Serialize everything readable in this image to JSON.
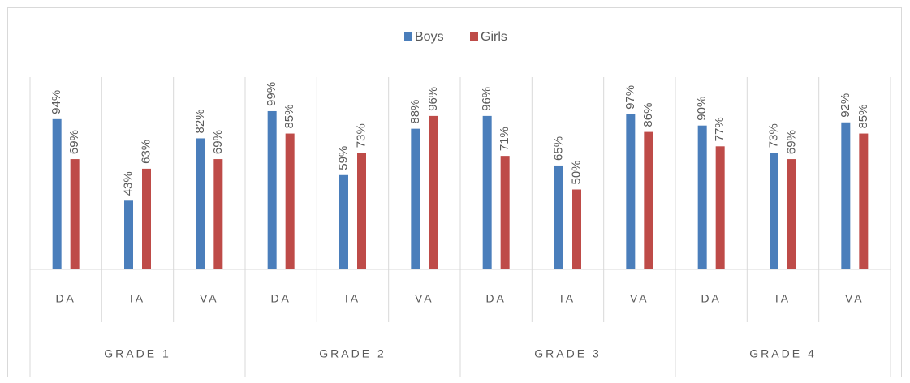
{
  "chart_data": {
    "type": "grouped_bar",
    "groups": [
      {
        "label": "GRADE 1",
        "categories": [
          "DA",
          "IA",
          "VA"
        ]
      },
      {
        "label": "GRADE 2",
        "categories": [
          "DA",
          "IA",
          "VA"
        ]
      },
      {
        "label": "GRADE 3",
        "categories": [
          "DA",
          "IA",
          "VA"
        ]
      },
      {
        "label": "GRADE 4",
        "categories": [
          "DA",
          "IA",
          "VA"
        ]
      }
    ],
    "series": [
      {
        "name": "Boys",
        "color": "#4a7ebb",
        "values": [
          94,
          43,
          82,
          99,
          59,
          88,
          96,
          65,
          97,
          90,
          73,
          92
        ],
        "value_labels": [
          "94%",
          "43%",
          "82%",
          "99%",
          "59%",
          "88%",
          "96%",
          "65%",
          "97%",
          "90%",
          "73%",
          "92%"
        ]
      },
      {
        "name": "Girls",
        "color": "#be4b48",
        "values": [
          69,
          63,
          69,
          85,
          73,
          96,
          71,
          50,
          86,
          77,
          69,
          85
        ],
        "value_labels": [
          "69%",
          "63%",
          "69%",
          "85%",
          "73%",
          "96%",
          "71%",
          "50%",
          "86%",
          "77%",
          "69%",
          "85%"
        ]
      }
    ],
    "ylim": [
      0,
      100
    ],
    "legend": "top"
  }
}
